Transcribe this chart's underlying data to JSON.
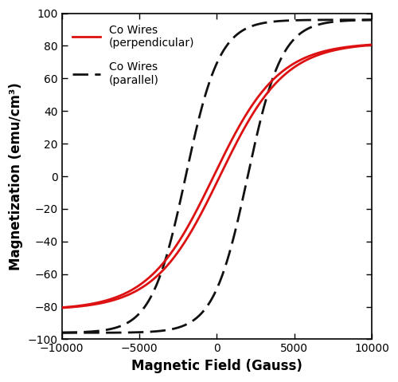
{
  "xlabel": "Magnetic Field (Gauss)",
  "ylabel": "Magnetization (emu/cm³)",
  "xlim": [
    -10000,
    10000
  ],
  "ylim": [
    -100,
    100
  ],
  "xticks": [
    -10000,
    -5000,
    0,
    5000,
    10000
  ],
  "yticks": [
    -100,
    -80,
    -60,
    -40,
    -20,
    0,
    20,
    40,
    60,
    80,
    100
  ],
  "legend_perp": "Co Wires\n(perpendicular)",
  "legend_para": "Co Wires\n(parallel)",
  "perp_color": "#dd1111",
  "para_color": "#111111",
  "perp_linewidth": 2.0,
  "para_linewidth": 2.0,
  "xlabel_fontsize": 12,
  "ylabel_fontsize": 12,
  "tick_fontsize": 10,
  "legend_fontsize": 10,
  "perp_Msat": 82,
  "perp_Hscale": 4200,
  "perp_Hc": 200,
  "para_Msat": 96,
  "para_Hscale": 2200,
  "para_Hc": 2000
}
